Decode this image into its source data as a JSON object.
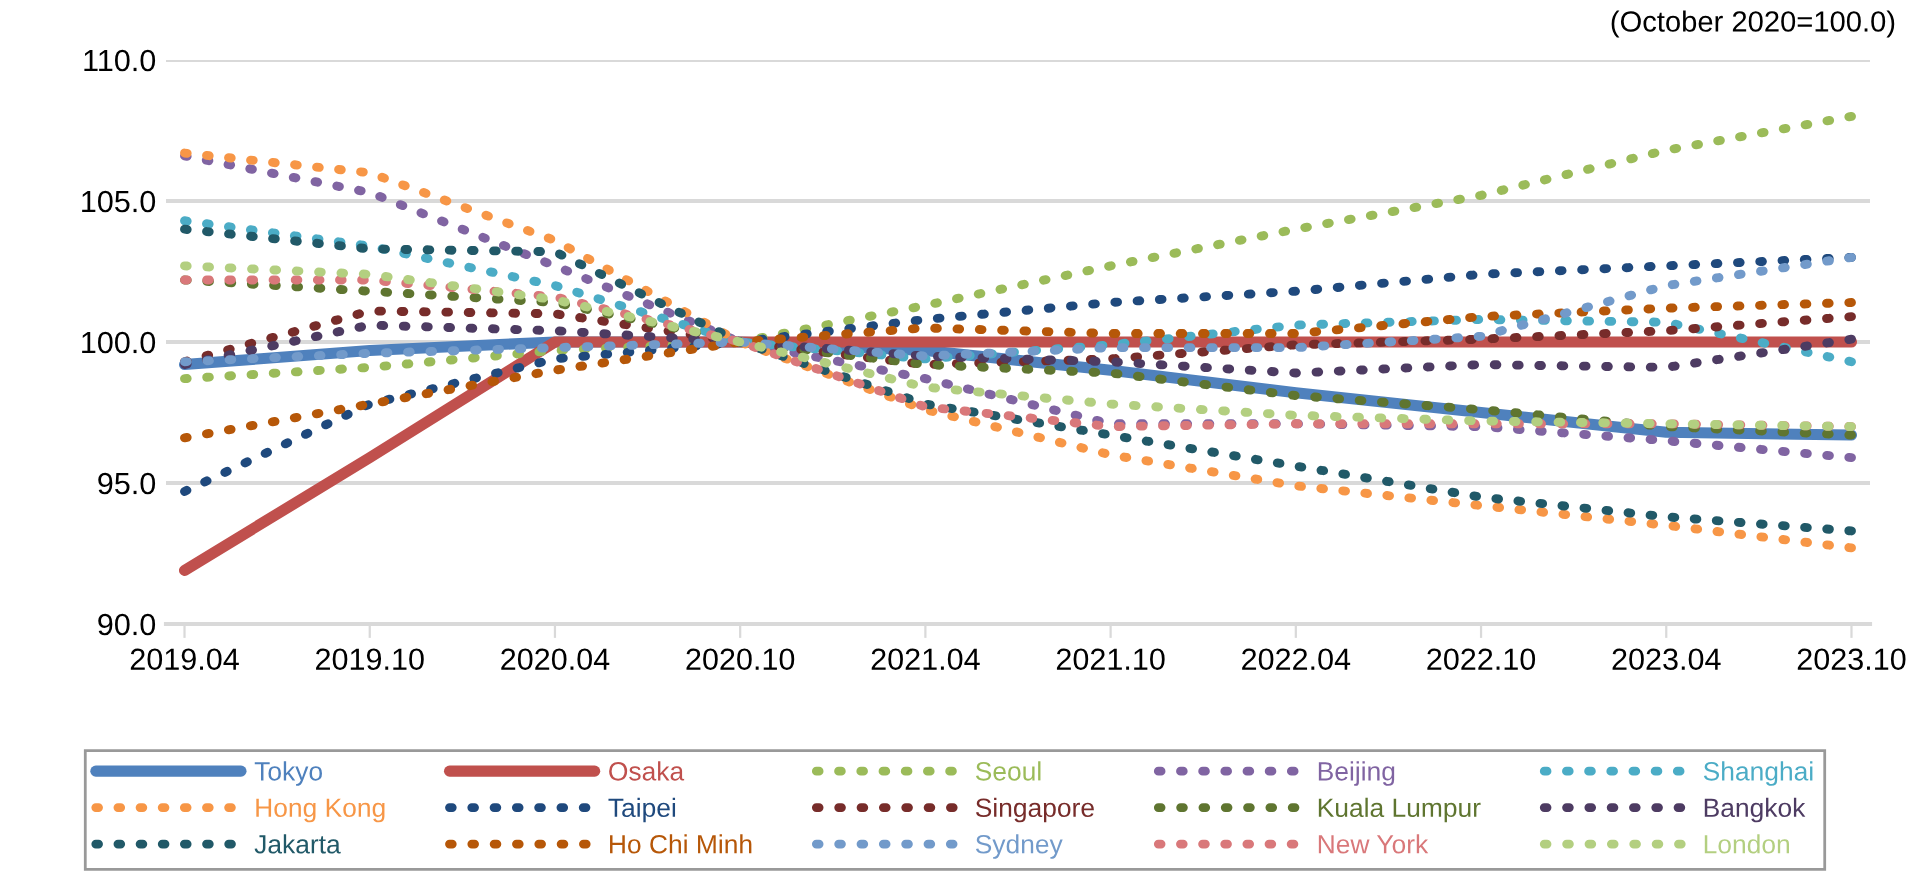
{
  "chart_data": {
    "type": "line",
    "annotations": [
      "(October 2020=100.0)"
    ],
    "categories": [
      "2019.04",
      "2019.10",
      "2020.04",
      "2020.10",
      "2021.04",
      "2021.10",
      "2022.04",
      "2022.10",
      "2023.04",
      "2023.10"
    ],
    "ylim": [
      90,
      110
    ],
    "yticks": [
      {
        "value": 90,
        "label": "90.0"
      },
      {
        "value": 95,
        "label": "95.0"
      },
      {
        "value": 100,
        "label": "100.0"
      },
      {
        "value": 105,
        "label": "105.0"
      },
      {
        "value": 110,
        "label": "110.0"
      }
    ],
    "grid": "y",
    "legend": "bottom",
    "marker": "none",
    "series": [
      {
        "name": "Tokyo",
        "color": "#4f81bd",
        "line_style": "solid",
        "values": [
          99.2,
          99.7,
          100.0,
          100.0,
          99.7,
          99.0,
          98.2,
          97.5,
          96.8,
          96.7
        ]
      },
      {
        "name": "Osaka",
        "color": "#c0504d",
        "line_style": "solid",
        "values": [
          91.9,
          95.9,
          100.0,
          100.0,
          100.0,
          100.0,
          100.0,
          100.0,
          100.0,
          100.0
        ]
      },
      {
        "name": "Seoul",
        "color": "#9bbb59",
        "line_style": "dotted",
        "values": [
          98.7,
          99.1,
          99.7,
          100.0,
          101.3,
          102.7,
          104.0,
          105.2,
          106.8,
          108.0
        ]
      },
      {
        "name": "Beijing",
        "color": "#8064a2",
        "line_style": "dotted",
        "values": [
          106.6,
          105.3,
          102.7,
          100.0,
          98.7,
          97.1,
          97.1,
          97.0,
          96.5,
          95.9
        ]
      },
      {
        "name": "Shanghai",
        "color": "#4bacc6",
        "line_style": "dotted",
        "values": [
          104.3,
          103.4,
          102.0,
          100.0,
          99.4,
          99.9,
          100.6,
          100.8,
          100.7,
          99.3
        ]
      },
      {
        "name": "Hong Kong",
        "color": "#f79646",
        "line_style": "dotted",
        "values": [
          106.7,
          106.0,
          103.6,
          100.0,
          97.6,
          96.0,
          94.9,
          94.2,
          93.5,
          92.7
        ]
      },
      {
        "name": "Taipei",
        "color": "#1f497d",
        "line_style": "dotted",
        "values": [
          94.7,
          97.8,
          99.4,
          100.0,
          100.8,
          101.4,
          101.8,
          102.4,
          102.7,
          103.0
        ]
      },
      {
        "name": "Singapore",
        "color": "#772c2a",
        "line_style": "dotted",
        "values": [
          99.3,
          101.1,
          101.0,
          100.0,
          99.2,
          99.4,
          99.9,
          100.1,
          100.4,
          100.9
        ]
      },
      {
        "name": "Kuala Lumpur",
        "color": "#5f7530",
        "line_style": "dotted",
        "values": [
          102.2,
          101.8,
          101.4,
          100.0,
          99.2,
          98.9,
          98.1,
          97.6,
          97.0,
          96.7
        ]
      },
      {
        "name": "Bangkok",
        "color": "#4d3b62",
        "line_style": "dotted",
        "values": [
          99.2,
          100.6,
          100.4,
          100.0,
          99.5,
          99.3,
          98.9,
          99.2,
          99.1,
          100.1
        ]
      },
      {
        "name": "Jakarta",
        "color": "#215968",
        "line_style": "dotted",
        "values": [
          104.0,
          103.3,
          103.2,
          100.0,
          97.8,
          96.7,
          95.6,
          94.5,
          93.8,
          93.3
        ]
      },
      {
        "name": "Ho Chi Minh",
        "color": "#b65708",
        "line_style": "dotted",
        "values": [
          96.6,
          97.8,
          99.0,
          100.0,
          100.5,
          100.3,
          100.3,
          100.9,
          101.2,
          101.4
        ]
      },
      {
        "name": "Sydney",
        "color": "#729aca",
        "line_style": "dotted",
        "values": [
          99.3,
          99.6,
          99.8,
          100.0,
          99.5,
          99.8,
          99.8,
          100.2,
          102.0,
          103.0
        ]
      },
      {
        "name": "New York",
        "color": "#d9787a",
        "line_style": "dotted",
        "values": [
          102.2,
          102.2,
          101.6,
          100.0,
          97.7,
          97.0,
          97.1,
          97.1,
          97.1,
          97.0
        ]
      },
      {
        "name": "London",
        "color": "#b3cf80",
        "line_style": "dotted",
        "values": [
          102.7,
          102.4,
          101.5,
          100.0,
          98.4,
          97.8,
          97.4,
          97.2,
          97.1,
          97.0
        ]
      }
    ]
  }
}
